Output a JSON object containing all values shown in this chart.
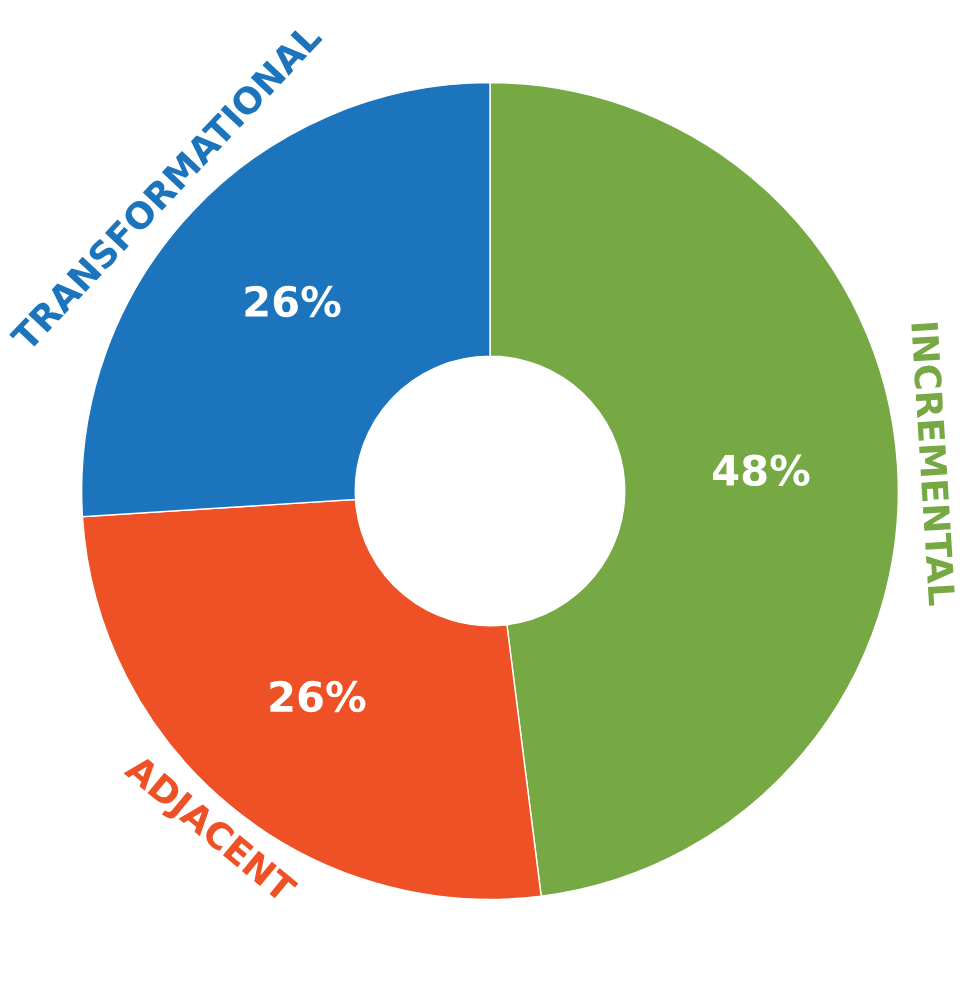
{
  "chart_data": {
    "type": "donut",
    "categories": [
      "INCREMENTAL",
      "ADJACENT",
      "TRANSFORMATIONAL"
    ],
    "values": [
      48,
      26,
      26
    ],
    "colors": [
      "#76a844",
      "#ee5125",
      "#1c75bc"
    ],
    "value_labels": [
      "48%",
      "26%",
      "26%"
    ]
  }
}
